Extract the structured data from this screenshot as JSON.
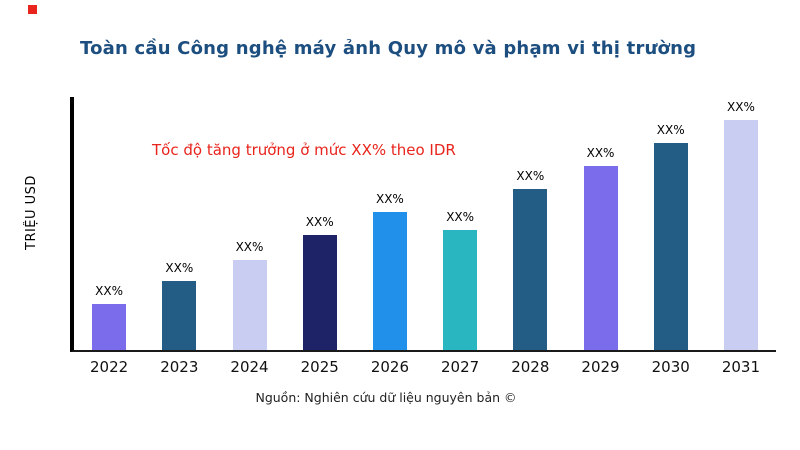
{
  "page": {
    "source": "Nguồn: Nghiên cứu dữ liệu nguyên bản ©"
  },
  "colors": {
    "title": "#1c4e7f",
    "annotation": "#e8241c",
    "axis": "#000000",
    "marker": "#e8241c"
  },
  "chart_data": {
    "type": "bar",
    "title": "Toàn cầu Công nghệ máy ảnh Quy mô và phạm vi thị trường",
    "ylabel": "TRIỆU USD",
    "xlabel": "",
    "annotation": "Tốc độ tăng trưởng ở mức XX% theo IDR",
    "annotation_color": "#e8241c",
    "categories": [
      "2022",
      "2023",
      "2024",
      "2025",
      "2026",
      "2027",
      "2028",
      "2029",
      "2030",
      "2031"
    ],
    "values": [
      20,
      30,
      39,
      50,
      60,
      52,
      70,
      80,
      90,
      100
    ],
    "value_labels": [
      "XX%",
      "XX%",
      "XX%",
      "XX%",
      "XX%",
      "XX%",
      "XX%",
      "XX%",
      "XX%",
      "XX%"
    ],
    "bar_colors": [
      "#7b6ceb",
      "#235c85",
      "#c9cdf2",
      "#1d2366",
      "#2090ea",
      "#2ab6c0",
      "#235c85",
      "#7b6ceb",
      "#235c85",
      "#c9cdf2"
    ],
    "ylim": [
      0,
      110
    ],
    "grid": false,
    "legend": false
  }
}
